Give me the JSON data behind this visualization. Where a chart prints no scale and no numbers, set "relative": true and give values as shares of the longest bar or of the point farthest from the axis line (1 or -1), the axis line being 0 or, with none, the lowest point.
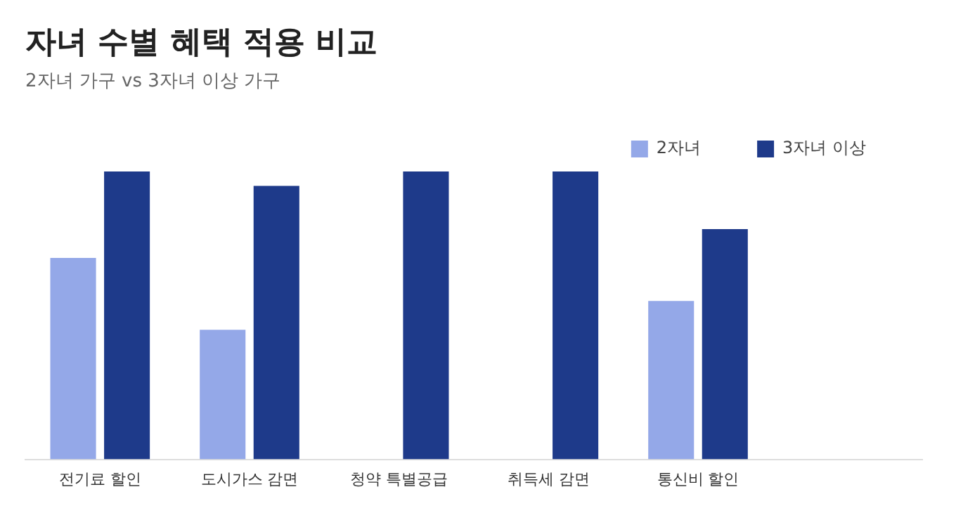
{
  "chart_data": {
    "type": "bar",
    "title": "자녀 수별 혜택 적용 비교",
    "subtitle": "2자녀 가구 vs 3자녀 이상 가구",
    "relative": true,
    "legend": "top right",
    "grid": false,
    "categories": [
      "전기료 할인",
      "도시가스 감면",
      "청약 특별공급",
      "취득세 감면",
      "통신비 할인",
      null
    ],
    "series": [
      {
        "name": "2자녀",
        "color": "#94a8e8",
        "values": [
          0.7,
          0.45,
          0,
          0,
          0.55,
          null
        ]
      },
      {
        "name": "3자녀 이상",
        "color": "#1e3a8a",
        "values": [
          1,
          0.95,
          1,
          1,
          0.8,
          null
        ]
      }
    ]
  }
}
